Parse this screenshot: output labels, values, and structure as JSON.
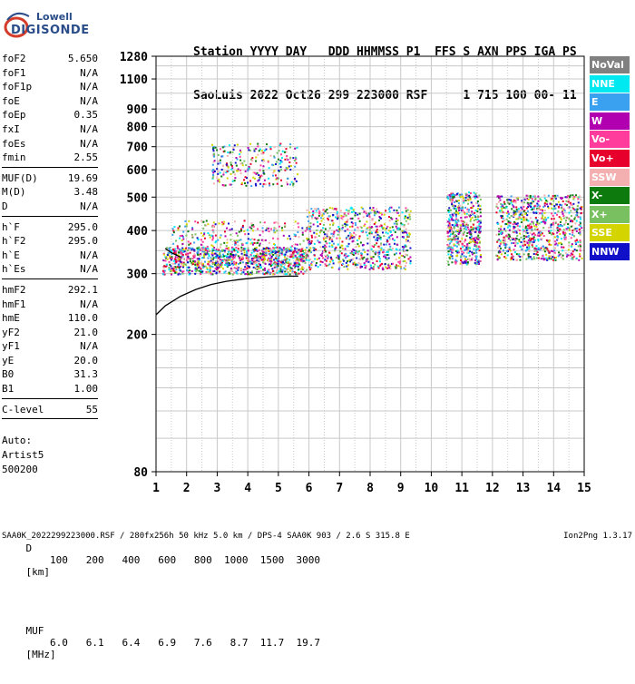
{
  "logo": {
    "line1": "Lowell",
    "line2": "DIGISONDE"
  },
  "header": {
    "line1": "Station YYYY DAY   DDD HHMMSS P1  FFS S AXN PPS IGA PS",
    "line2": "SaoLuis 2022 Oct26 299 223000 RSF     1 715 100 00- 11"
  },
  "params": {
    "group1": [
      {
        "name": "foF2",
        "value": "5.650"
      },
      {
        "name": "foF1",
        "value": "N/A"
      },
      {
        "name": "foF1p",
        "value": "N/A"
      },
      {
        "name": "foE",
        "value": "N/A"
      },
      {
        "name": "foEp",
        "value": "0.35"
      },
      {
        "name": "fxI",
        "value": "N/A"
      },
      {
        "name": "foEs",
        "value": "N/A"
      },
      {
        "name": "fmin",
        "value": "2.55"
      }
    ],
    "group2": [
      {
        "name": "MUF(D)",
        "value": "19.69"
      },
      {
        "name": "M(D)",
        "value": "3.48"
      },
      {
        "name": "D",
        "value": "N/A"
      }
    ],
    "group3": [
      {
        "name": "h`F",
        "value": "295.0"
      },
      {
        "name": "h`F2",
        "value": "295.0"
      },
      {
        "name": "h`E",
        "value": "N/A"
      },
      {
        "name": "h`Es",
        "value": "N/A"
      }
    ],
    "group4": [
      {
        "name": "hmF2",
        "value": "292.1"
      },
      {
        "name": "hmF1",
        "value": "N/A"
      },
      {
        "name": "hmE",
        "value": "110.0"
      },
      {
        "name": "yF2",
        "value": "21.0"
      },
      {
        "name": "yF1",
        "value": "N/A"
      },
      {
        "name": "yE",
        "value": "20.0"
      },
      {
        "name": "B0",
        "value": "31.3"
      },
      {
        "name": "B1",
        "value": "1.00"
      }
    ],
    "group5": [
      {
        "name": "C-level",
        "value": "55"
      }
    ]
  },
  "autoscaling": {
    "line1": "Auto:",
    "line2": "Artist5",
    "line3": "500200"
  },
  "muf_table": {
    "d_label": "D",
    "d_values": [
      "100",
      "200",
      "400",
      "600",
      "800",
      "1000",
      "1500",
      "3000"
    ],
    "d_unit": "[km]",
    "muf_label": "MUF",
    "muf_values": [
      "6.0",
      "6.1",
      "6.4",
      "6.9",
      "7.6",
      "8.7",
      "11.7",
      "19.7"
    ],
    "muf_unit": "[MHz]"
  },
  "footer": {
    "left": "SAA0K_2022299223000.RSF / 280fx256h 50 kHz 5.0 km / DPS-4 SAA0K 903 / 2.6 S 315.8 E",
    "right": "Ion2Png 1.3.17"
  },
  "legend": [
    {
      "label": "NoVal",
      "color": "#808080"
    },
    {
      "label": "NNE",
      "color": "#00e8f0"
    },
    {
      "label": "E",
      "color": "#3aa0f0"
    },
    {
      "label": "W",
      "color": "#b000b0"
    },
    {
      "label": "Vo-",
      "color": "#ff3c9c"
    },
    {
      "label": "Vo+",
      "color": "#e8002c"
    },
    {
      "label": "SSW",
      "color": "#f4b0b0"
    },
    {
      "label": "X-",
      "color": "#0c7a0c"
    },
    {
      "label": "X+",
      "color": "#78c060"
    },
    {
      "label": "SSE",
      "color": "#d4d400"
    },
    {
      "label": "NNW",
      "color": "#1010c8"
    }
  ],
  "chart_data": {
    "type": "scatter",
    "title": "",
    "xlabel": "",
    "ylabel": "",
    "x_range": [
      1,
      15
    ],
    "y_range": [
      80,
      1280
    ],
    "x_ticks": [
      1,
      2,
      3,
      4,
      5,
      6,
      7,
      8,
      9,
      10,
      11,
      12,
      13,
      14,
      15
    ],
    "y_ticks": [
      80,
      200,
      300,
      400,
      500,
      600,
      700,
      800,
      900,
      1100,
      1280
    ],
    "y_scale": "log",
    "grid": true,
    "legend_placement": "right",
    "ionogram_clusters": [
      {
        "name": "F-trace low",
        "x": [
          1.2,
          5.9
        ],
        "y": [
          300,
          360
        ]
      },
      {
        "name": "F-trace mid",
        "x": [
          5.9,
          9.3
        ],
        "y": [
          310,
          470
        ]
      },
      {
        "name": "F-trace high 1",
        "x": [
          10.5,
          11.6
        ],
        "y": [
          320,
          520
        ]
      },
      {
        "name": "F-trace high 2",
        "x": [
          12.1,
          14.9
        ],
        "y": [
          330,
          510
        ]
      },
      {
        "name": "Sporadic upper",
        "x": [
          2.8,
          5.6
        ],
        "y": [
          540,
          720
        ]
      },
      {
        "name": "Diffuse spread",
        "x": [
          1.5,
          6.0
        ],
        "y": [
          320,
          430
        ]
      }
    ],
    "profile_curve": {
      "x": [
        1.0,
        1.3,
        1.8,
        2.3,
        2.8,
        3.3,
        3.8,
        4.3,
        4.8,
        5.3,
        5.65
      ],
      "y": [
        228,
        242,
        258,
        270,
        279,
        285,
        289,
        292,
        294,
        295,
        295
      ]
    },
    "profile_upper": {
      "x": [
        1.3,
        1.5,
        1.8
      ],
      "y": [
        355,
        345,
        335
      ]
    }
  }
}
